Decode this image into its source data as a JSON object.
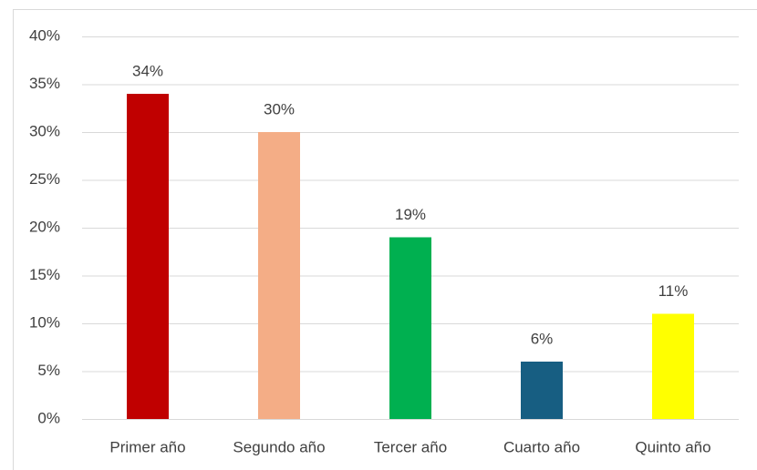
{
  "chart_data": {
    "type": "bar",
    "categories": [
      "Primer año",
      "Segundo año",
      "Tercer año",
      "Cuarto año",
      "Quinto año"
    ],
    "values": [
      34,
      30,
      19,
      6,
      11
    ],
    "value_labels": [
      "34%",
      "30%",
      "19%",
      "6%",
      "11%"
    ],
    "colors": [
      "#c00000",
      "#f4ad86",
      "#00b050",
      "#175e82",
      "#ffff00"
    ],
    "ylim": [
      0,
      40
    ],
    "yticks": [
      {
        "value": 0,
        "label": "0%"
      },
      {
        "value": 5,
        "label": "5%"
      },
      {
        "value": 10,
        "label": "10%"
      },
      {
        "value": 15,
        "label": "15%"
      },
      {
        "value": 20,
        "label": "20%"
      },
      {
        "value": 25,
        "label": "25%"
      },
      {
        "value": 30,
        "label": "30%"
      },
      {
        "value": 35,
        "label": "35%"
      },
      {
        "value": 40,
        "label": "40%"
      }
    ],
    "grid": true
  }
}
